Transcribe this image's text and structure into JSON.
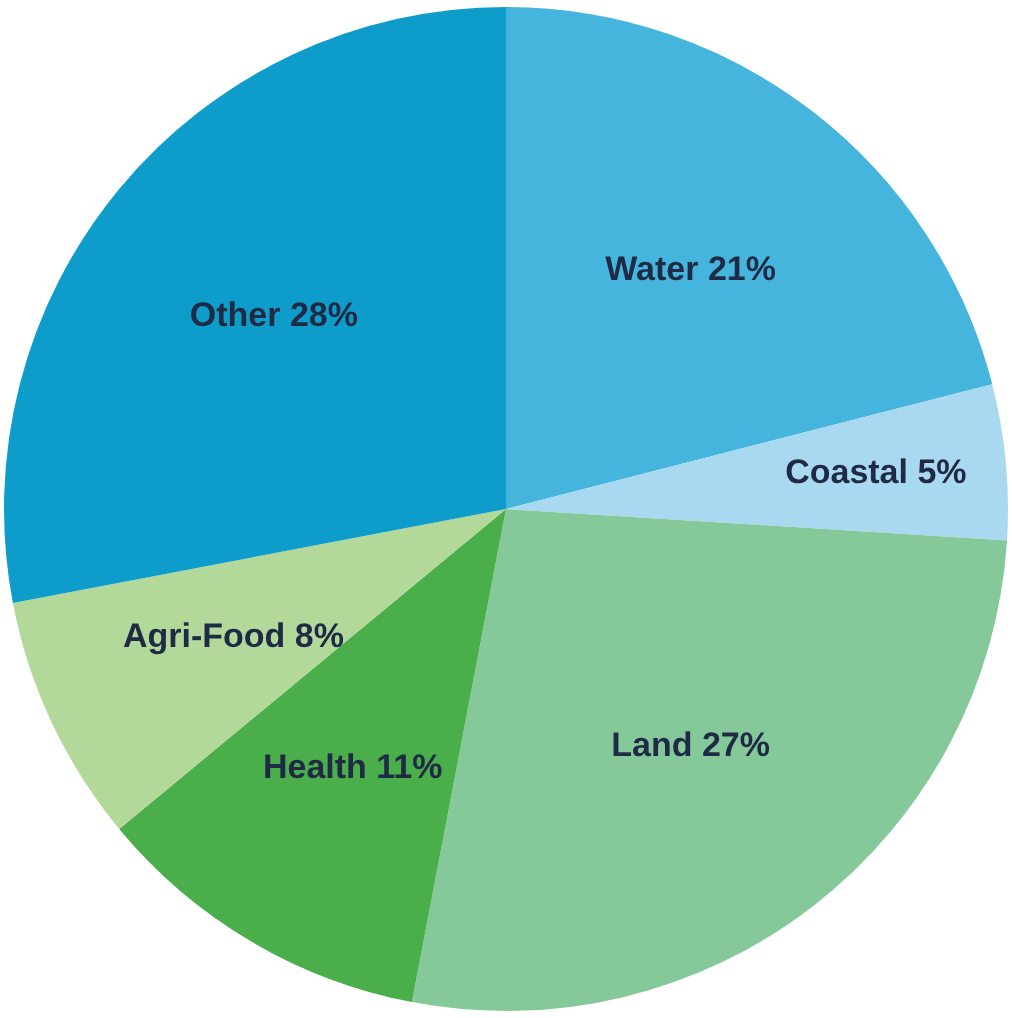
{
  "chart_data": {
    "type": "pie",
    "categories": [
      "Water",
      "Coastal",
      "Land",
      "Health",
      "Agri-Food",
      "Other"
    ],
    "values": [
      21,
      5,
      27,
      11,
      8,
      28
    ],
    "value_labels": [
      "21%",
      "5%",
      "27%",
      "11%",
      "8%",
      "28%"
    ],
    "colors": [
      "#45b5de",
      "#a8d9f0",
      "#85c99a",
      "#4aae4a",
      "#b2d89a",
      "#0e9ccb"
    ],
    "legend": false
  }
}
